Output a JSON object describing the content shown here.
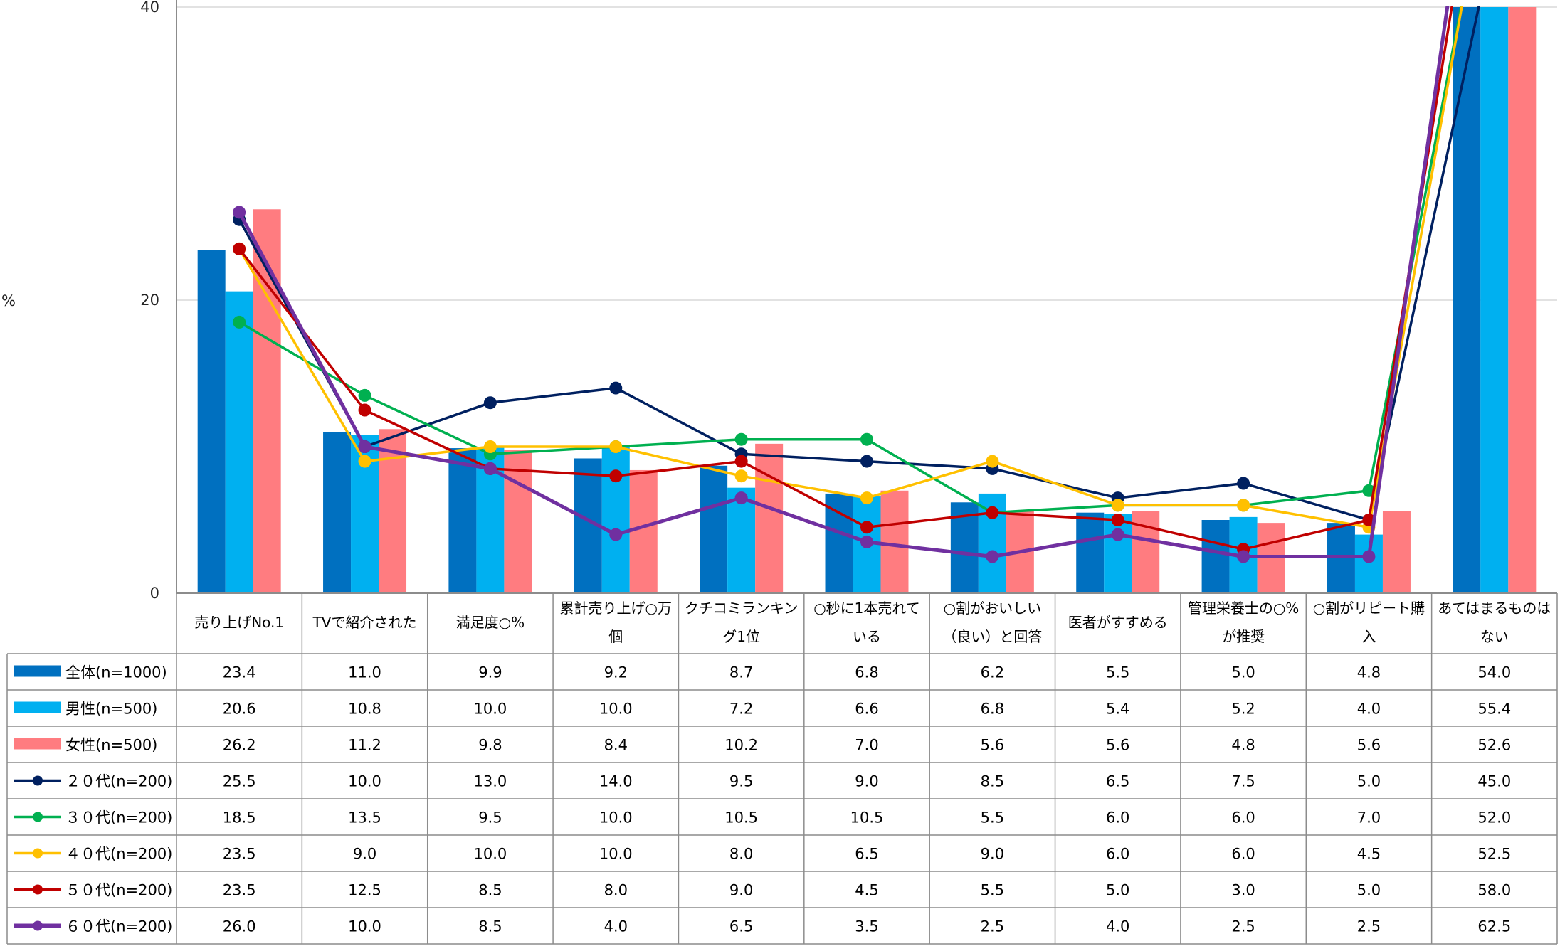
{
  "chart_data": {
    "type": "bar+line",
    "ylabel": "%",
    "ylim": [
      0,
      40
    ],
    "yticks": [
      0,
      20,
      40
    ],
    "grid": true,
    "legend": "table-left",
    "categories": [
      [
        "売り上げNo.1"
      ],
      [
        "TVで紹介された"
      ],
      [
        "満足度○%"
      ],
      [
        "累計売り上げ○万",
        "個"
      ],
      [
        "クチコミランキン",
        "グ1位"
      ],
      [
        "○秒に1本売れて",
        "いる"
      ],
      [
        "○割がおいしい",
        "（良い）と回答"
      ],
      [
        "医者がすすめる"
      ],
      [
        "管理栄養士の○%",
        "が推奨"
      ],
      [
        "○割がリピート購",
        "入"
      ],
      [
        "あてはまるものは",
        "ない"
      ]
    ],
    "bar_series": [
      {
        "name": "全体(n=1000)",
        "color": "#0070C0",
        "values": [
          "23.4",
          "11.0",
          "9.9",
          "9.2",
          "8.7",
          "6.8",
          "6.2",
          "5.5",
          "5.0",
          "4.8",
          "54.0"
        ]
      },
      {
        "name": "男性(n=500)",
        "color": "#00B0F0",
        "values": [
          "20.6",
          "10.8",
          "10.0",
          "10.0",
          "7.2",
          "6.6",
          "6.8",
          "5.4",
          "5.2",
          "4.0",
          "55.4"
        ]
      },
      {
        "name": "女性(n=500)",
        "color": "#FF7C80",
        "values": [
          "26.2",
          "11.2",
          "9.8",
          "8.4",
          "10.2",
          "7.0",
          "5.6",
          "5.6",
          "4.8",
          "5.6",
          "52.6"
        ]
      }
    ],
    "line_series": [
      {
        "name": "２０代(n=200)",
        "color": "#002060",
        "values": [
          "25.5",
          "10.0",
          "13.0",
          "14.0",
          "9.5",
          "9.0",
          "8.5",
          "6.5",
          "7.5",
          "5.0",
          "45.0"
        ]
      },
      {
        "name": "３０代(n=200)",
        "color": "#00B050",
        "values": [
          "18.5",
          "13.5",
          "9.5",
          "10.0",
          "10.5",
          "10.5",
          "5.5",
          "6.0",
          "6.0",
          "7.0",
          "52.0"
        ]
      },
      {
        "name": "４０代(n=200)",
        "color": "#FFC000",
        "values": [
          "23.5",
          "9.0",
          "10.0",
          "10.0",
          "8.0",
          "6.5",
          "9.0",
          "6.0",
          "6.0",
          "4.5",
          "52.5"
        ]
      },
      {
        "name": "５０代(n=200)",
        "color": "#C00000",
        "values": [
          "23.5",
          "12.5",
          "8.5",
          "8.0",
          "9.0",
          "4.5",
          "5.5",
          "5.0",
          "3.0",
          "5.0",
          "58.0"
        ]
      },
      {
        "name": "６０代(n=200)",
        "color": "#7030A0",
        "values": [
          "26.0",
          "10.0",
          "8.5",
          "4.0",
          "6.5",
          "3.5",
          "2.5",
          "4.0",
          "2.5",
          "2.5",
          "62.5"
        ]
      }
    ]
  }
}
